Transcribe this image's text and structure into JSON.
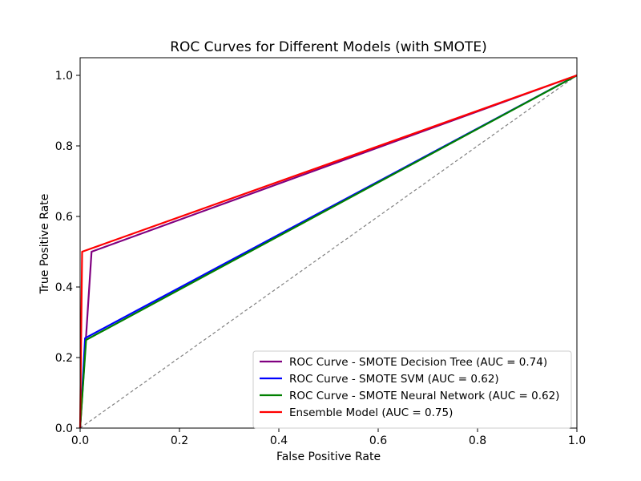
{
  "chart_data": {
    "type": "line",
    "title": "ROC Curves for Different Models (with SMOTE)",
    "xlabel": "False Positive Rate",
    "ylabel": "True Positive Rate",
    "xlim": [
      0.0,
      1.0
    ],
    "ylim": [
      0.0,
      1.05
    ],
    "x_ticks": [
      "0.0",
      "0.2",
      "0.4",
      "0.6",
      "0.8",
      "1.0"
    ],
    "y_ticks": [
      "0.0",
      "0.2",
      "0.4",
      "0.6",
      "0.8",
      "1.0"
    ],
    "grid": false,
    "legend_position": "lower-right",
    "series": [
      {
        "name": "ROC Curve - SMOTE Decision Tree (AUC = 0.74)",
        "color": "#800080",
        "x": [
          0.0,
          0.023,
          1.0
        ],
        "y": [
          0.0,
          0.5,
          1.0
        ]
      },
      {
        "name": "ROC Curve - SMOTE SVM (AUC = 0.62)",
        "color": "#0000ff",
        "x": [
          0.0,
          0.01,
          1.0
        ],
        "y": [
          0.0,
          0.255,
          1.0
        ]
      },
      {
        "name": "ROC Curve - SMOTE Neural Network (AUC = 0.62)",
        "color": "#008000",
        "x": [
          0.0,
          0.012,
          1.0
        ],
        "y": [
          0.0,
          0.25,
          1.0
        ]
      },
      {
        "name": "Ensemble Model (AUC = 0.75)",
        "color": "#ff0000",
        "x": [
          0.0,
          0.004,
          1.0
        ],
        "y": [
          0.0,
          0.5,
          1.0
        ]
      }
    ],
    "reference_line": {
      "x": [
        0.0,
        1.0
      ],
      "y": [
        0.0,
        1.0
      ],
      "color": "#808080",
      "style": "dashed"
    }
  }
}
